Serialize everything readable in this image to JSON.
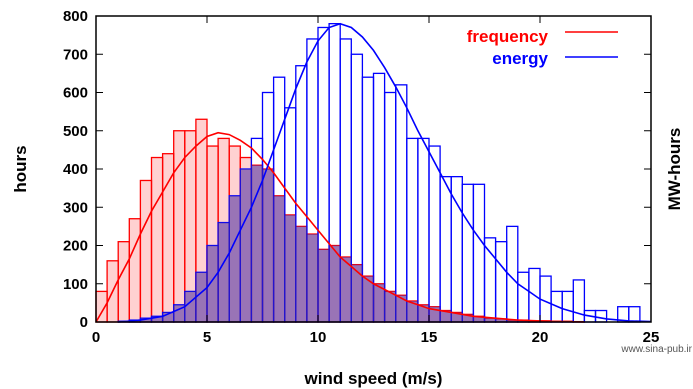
{
  "chart_data": {
    "type": "bar",
    "xlabel": "wind speed (m/s)",
    "ylabel": "hours",
    "y2label": "MW-hours",
    "xlim": [
      0,
      25
    ],
    "ylim": [
      0,
      800
    ],
    "xticks": [
      0,
      5,
      10,
      15,
      20,
      25
    ],
    "yticks": [
      0,
      100,
      200,
      300,
      400,
      500,
      600,
      700,
      800
    ],
    "grid": false,
    "legend_position": "top-right",
    "bin_width": 0.5,
    "series": [
      {
        "name": "frequency",
        "color": "#ff0000",
        "bars": [
          [
            0.5,
            80
          ],
          [
            1,
            160
          ],
          [
            1.5,
            210
          ],
          [
            2,
            270
          ],
          [
            2.5,
            370
          ],
          [
            3,
            430
          ],
          [
            3.5,
            440
          ],
          [
            4,
            500
          ],
          [
            4.5,
            500
          ],
          [
            5,
            530
          ],
          [
            5.5,
            460
          ],
          [
            6,
            480
          ],
          [
            6.5,
            460
          ],
          [
            7,
            430
          ],
          [
            7.5,
            410
          ],
          [
            8,
            400
          ],
          [
            8.5,
            330
          ],
          [
            9,
            280
          ],
          [
            9.5,
            250
          ],
          [
            10,
            230
          ],
          [
            10.5,
            190
          ],
          [
            11,
            200
          ],
          [
            11.5,
            170
          ],
          [
            12,
            150
          ],
          [
            12.5,
            120
          ],
          [
            13,
            100
          ],
          [
            13.5,
            80
          ],
          [
            14,
            70
          ],
          [
            14.5,
            55
          ],
          [
            15,
            45
          ],
          [
            15.5,
            40
          ],
          [
            16,
            30
          ],
          [
            16.5,
            25
          ],
          [
            17,
            20
          ],
          [
            17.5,
            15
          ],
          [
            18,
            10
          ],
          [
            18.5,
            8
          ],
          [
            19,
            5
          ],
          [
            19.5,
            5
          ],
          [
            20,
            3
          ],
          [
            20.5,
            3
          ],
          [
            21,
            2
          ],
          [
            21.5,
            2
          ],
          [
            22,
            1
          ]
        ],
        "curve": [
          [
            0,
            0
          ],
          [
            0.5,
            50
          ],
          [
            1,
            110
          ],
          [
            1.5,
            165
          ],
          [
            2,
            230
          ],
          [
            2.5,
            290
          ],
          [
            3,
            340
          ],
          [
            3.5,
            390
          ],
          [
            4,
            430
          ],
          [
            4.5,
            460
          ],
          [
            5,
            485
          ],
          [
            5.5,
            495
          ],
          [
            6,
            490
          ],
          [
            6.5,
            475
          ],
          [
            7,
            455
          ],
          [
            7.5,
            425
          ],
          [
            8,
            390
          ],
          [
            8.5,
            350
          ],
          [
            9,
            310
          ],
          [
            9.5,
            275
          ],
          [
            10,
            240
          ],
          [
            10.5,
            205
          ],
          [
            11,
            170
          ],
          [
            11.5,
            145
          ],
          [
            12,
            120
          ],
          [
            12.5,
            100
          ],
          [
            13,
            85
          ],
          [
            13.5,
            70
          ],
          [
            14,
            55
          ],
          [
            14.5,
            45
          ],
          [
            15,
            35
          ],
          [
            16,
            25
          ],
          [
            17,
            15
          ],
          [
            18,
            10
          ],
          [
            19,
            5
          ],
          [
            20,
            3
          ],
          [
            21,
            1
          ],
          [
            22,
            0
          ]
        ]
      },
      {
        "name": "energy",
        "color": "#0000ff",
        "bars": [
          [
            1.5,
            2
          ],
          [
            2,
            5
          ],
          [
            2.5,
            10
          ],
          [
            3,
            15
          ],
          [
            3.5,
            25
          ],
          [
            4,
            45
          ],
          [
            4.5,
            80
          ],
          [
            5,
            130
          ],
          [
            5.5,
            200
          ],
          [
            6,
            260
          ],
          [
            6.5,
            330
          ],
          [
            7,
            400
          ],
          [
            7.5,
            480
          ],
          [
            8,
            600
          ],
          [
            8.5,
            640
          ],
          [
            9,
            560
          ],
          [
            9.5,
            670
          ],
          [
            10,
            740
          ],
          [
            10.5,
            770
          ],
          [
            11,
            780
          ],
          [
            11.5,
            740
          ],
          [
            12,
            700
          ],
          [
            12.5,
            640
          ],
          [
            13,
            650
          ],
          [
            13.5,
            600
          ],
          [
            14,
            620
          ],
          [
            14.5,
            480
          ],
          [
            15,
            480
          ],
          [
            15.5,
            460
          ],
          [
            16,
            380
          ],
          [
            16.5,
            380
          ],
          [
            17,
            360
          ],
          [
            17.5,
            360
          ],
          [
            18,
            220
          ],
          [
            18.5,
            210
          ],
          [
            19,
            250
          ],
          [
            19.5,
            130
          ],
          [
            20,
            140
          ],
          [
            20.5,
            120
          ],
          [
            21,
            80
          ],
          [
            21.5,
            80
          ],
          [
            22,
            110
          ],
          [
            22.5,
            30
          ],
          [
            23,
            30
          ],
          [
            24,
            40
          ],
          [
            24.5,
            40
          ]
        ],
        "curve": [
          [
            1,
            0
          ],
          [
            2,
            5
          ],
          [
            3,
            15
          ],
          [
            4,
            40
          ],
          [
            5,
            90
          ],
          [
            5.5,
            130
          ],
          [
            6,
            180
          ],
          [
            6.5,
            240
          ],
          [
            7,
            300
          ],
          [
            7.5,
            370
          ],
          [
            8,
            450
          ],
          [
            8.5,
            530
          ],
          [
            9,
            610
          ],
          [
            9.5,
            680
          ],
          [
            10,
            735
          ],
          [
            10.5,
            770
          ],
          [
            11,
            780
          ],
          [
            11.5,
            770
          ],
          [
            12,
            745
          ],
          [
            12.5,
            710
          ],
          [
            13,
            665
          ],
          [
            13.5,
            615
          ],
          [
            14,
            560
          ],
          [
            14.5,
            500
          ],
          [
            15,
            445
          ],
          [
            15.5,
            390
          ],
          [
            16,
            335
          ],
          [
            16.5,
            285
          ],
          [
            17,
            240
          ],
          [
            17.5,
            200
          ],
          [
            18,
            165
          ],
          [
            18.5,
            130
          ],
          [
            19,
            100
          ],
          [
            19.5,
            80
          ],
          [
            20,
            60
          ],
          [
            21,
            35
          ],
          [
            22,
            18
          ],
          [
            23,
            8
          ],
          [
            24,
            3
          ],
          [
            25,
            1
          ]
        ]
      }
    ]
  },
  "watermark": "www.sina-pub.ir"
}
